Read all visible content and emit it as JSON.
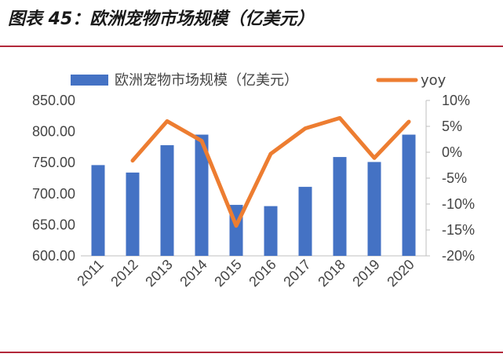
{
  "figure": {
    "title": "图表 45：欧洲宠物市场规模（亿美元）"
  },
  "colors": {
    "bar": "#4472c4",
    "line": "#ed7d31",
    "rule": "#b2283a",
    "axis": "#bfbfbf",
    "text": "#444444"
  },
  "chart_data": {
    "type": "bar",
    "title": "",
    "categories": [
      "2011",
      "2012",
      "2013",
      "2014",
      "2015",
      "2016",
      "2017",
      "2018",
      "2019",
      "2020"
    ],
    "series": [
      {
        "name": "欧洲宠物市场规模（亿美元）",
        "type": "bar",
        "axis": "left",
        "values": [
          746,
          734,
          778,
          795,
          682,
          680,
          711,
          759,
          751,
          795
        ]
      },
      {
        "name": "yoy",
        "type": "line",
        "axis": "right",
        "values": [
          null,
          -1.6,
          6.0,
          2.2,
          -14.2,
          -0.3,
          4.6,
          6.6,
          -1.1,
          5.9
        ]
      }
    ],
    "ylim_left": [
      600,
      850
    ],
    "ylim_right": [
      -20,
      10
    ],
    "yticks_left": [
      "600.00",
      "650.00",
      "700.00",
      "750.00",
      "800.00",
      "850.00"
    ],
    "yticks_right": [
      "-20%",
      "-15%",
      "-10%",
      "-5%",
      "0%",
      "5%",
      "10%"
    ],
    "legend": [
      "欧洲宠物市场规模（亿美元）",
      "yoy"
    ],
    "legend_position": "top"
  }
}
